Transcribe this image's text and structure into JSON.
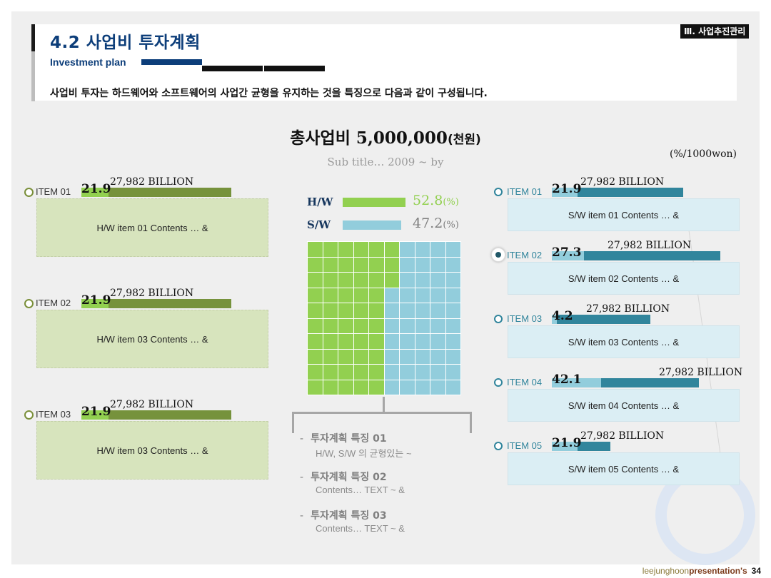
{
  "header": {
    "title": "4.2 사업비 투자계획",
    "subtitle": "Investment plan",
    "description": "사업비 투자는 하드웨어와 소프트웨어의 사업간 균형을 유지하는 것을 특징으로 다음과 같이 구성됩니다.",
    "section_tag": "Ⅲ. 사업추진관리"
  },
  "main": {
    "title": "총사업비",
    "amount": "5,000,000",
    "unit": "(천원)",
    "subtitle": "Sub title… 2009 ~ by",
    "unit_note": "(%/1000won)"
  },
  "colors": {
    "hw_light": "#92d050",
    "hw_dark": "#76923c",
    "sw_light": "#92cddc",
    "sw_dark": "#31859c",
    "title_blue": "#0d3e7a"
  },
  "hw_items": [
    {
      "label": "ITEM 01",
      "value": "21.9",
      "percent": 21.9,
      "billion": "27,982 BILLION",
      "content": "H/W item 01 Contents … &"
    },
    {
      "label": "ITEM 02",
      "value": "21.9",
      "percent": 21.9,
      "billion": "27,982 BILLION",
      "content": "H/W item 03 Contents … &"
    },
    {
      "label": "ITEM 03",
      "value": "21.9",
      "percent": 21.9,
      "billion": "27,982 BILLION",
      "content": "H/W item 03 Contents … &"
    }
  ],
  "sw_items": [
    {
      "label": "ITEM 01",
      "value": "21.9",
      "percent": 21.9,
      "billion": "27,982 BILLION",
      "content": "S/W item 01 Contents … &",
      "active": false
    },
    {
      "label": "ITEM 02",
      "value": "27.3",
      "percent": 27.3,
      "billion": "27,982 BILLION",
      "content": "S/W item 02 Contents … &",
      "active": true
    },
    {
      "label": "ITEM 03",
      "value": "4.2",
      "percent": 4.2,
      "billion": "27,982 BILLION",
      "content": "S/W item 03 Contents … &",
      "active": false
    },
    {
      "label": "ITEM 04",
      "value": "42.1",
      "percent": 42.1,
      "billion": "27,982 BILLION",
      "content": "S/W item 04 Contents … &",
      "active": false
    },
    {
      "label": "ITEM 05",
      "value": "21.9",
      "percent": 21.9,
      "billion": "27,982 BILLION",
      "content": "S/W item 05 Contents … &",
      "active": false
    }
  ],
  "chart_data": {
    "type": "waffle",
    "series": [
      {
        "name": "H/W",
        "value": 52.8,
        "unit": "(%)"
      },
      {
        "name": "S/W",
        "value": 47.2,
        "unit": "(%)"
      }
    ],
    "grid": [
      10,
      10
    ]
  },
  "legend": [
    {
      "name": "H/W",
      "value": "52.8",
      "unit": "(%)"
    },
    {
      "name": "S/W",
      "value": "47.2",
      "unit": "(%)"
    }
  ],
  "features": [
    {
      "dash": "-",
      "title": "투자계획 특징 01",
      "body": "H/W, S/W 의 균형있는 ~"
    },
    {
      "dash": "-",
      "title": "투자계획 특징 02",
      "body": "Contents… TEXT ~ &"
    },
    {
      "dash": "-",
      "title": "투자계획 특징 03",
      "body": "Contents… TEXT ~ &"
    }
  ],
  "footer": {
    "author": "leejunghoon",
    "brand": "presentation's",
    "page": "34"
  }
}
